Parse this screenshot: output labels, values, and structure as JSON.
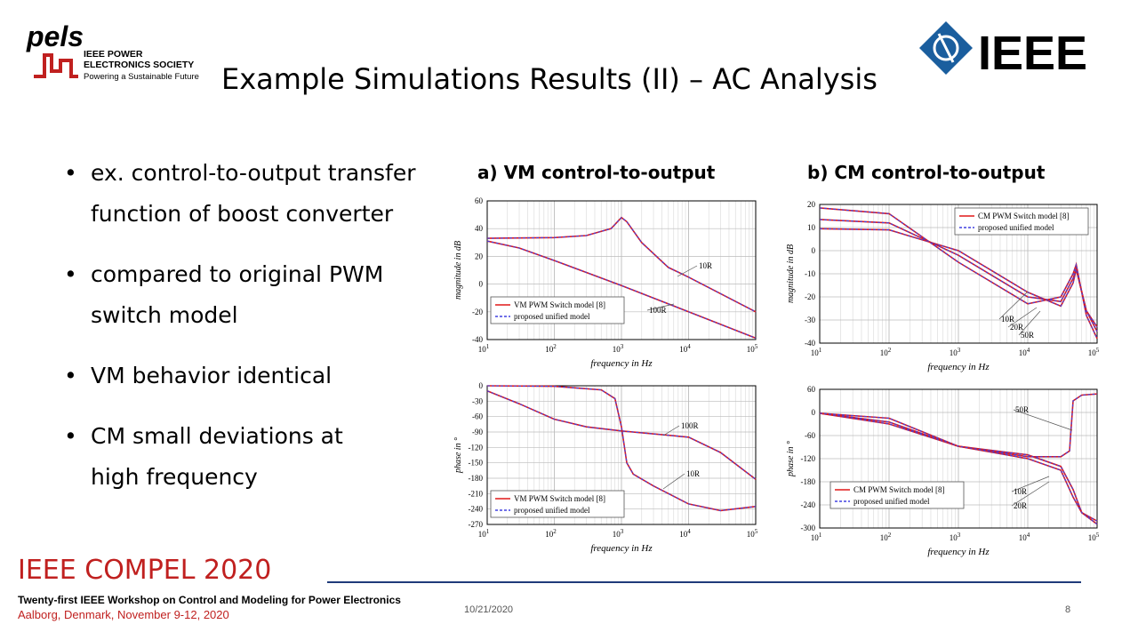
{
  "slide": {
    "title": "Example Simulations Results (II) – AC Analysis",
    "bullets": [
      {
        "line1": "ex. control-to-output transfer",
        "line2": "function of boost converter"
      },
      {
        "line1": "compared to original PWM",
        "line2": "switch model"
      },
      {
        "line1": "VM behavior identical",
        "line2": ""
      },
      {
        "line1": "CM small deviations at",
        "line2": "high frequency"
      }
    ],
    "headings": {
      "a": "a) VM control-to-output",
      "b": "b) CM control-to-output"
    }
  },
  "logos": {
    "pels_mark": "pels",
    "pels_line1": "IEEE POWER",
    "pels_line2": "ELECTRONICS SOCIETY",
    "pels_tagline": "Powering a Sustainable Future",
    "ieee_word": "IEEE"
  },
  "footer": {
    "conference": "IEEE COMPEL 2020",
    "workshop": "Twenty-first IEEE Workshop on Control and Modeling for Power Electronics",
    "location": "Aalborg, Denmark, November 9-12, 2020",
    "date": "10/21/2020",
    "page": "8"
  },
  "colors": {
    "accent_red": "#c0201f",
    "ieee_blue": "#1a5e9e",
    "rule_blue": "#1f3b7a",
    "model_red": "#e01818",
    "unified_blue": "#4040e0"
  },
  "chart_data": [
    {
      "type": "line",
      "x_scale": "log",
      "xlabel": "frequency in Hz",
      "ylabel": "magnitude in dB",
      "xlim": [
        10,
        100000
      ],
      "ylim": [
        -40,
        60
      ],
      "xticks": [
        "10^1",
        "10^2",
        "10^3",
        "10^4",
        "10^5"
      ],
      "yticks": [
        60,
        40,
        20,
        0,
        -20,
        -40
      ],
      "legend": [
        "VM PWM Switch model [8]",
        "proposed unified model"
      ],
      "legend_position": "bottom-left",
      "annotations": [
        "10R",
        "100R"
      ],
      "series": [
        {
          "label": "10R",
          "x": [
            10,
            100,
            300,
            700,
            1000,
            1200,
            2000,
            5000,
            10000,
            100000
          ],
          "y": [
            33,
            33.5,
            35,
            40,
            48,
            45,
            30,
            12,
            5,
            -20
          ]
        },
        {
          "label": "100R",
          "x": [
            10,
            30,
            100,
            1000,
            10000,
            100000
          ],
          "y": [
            31,
            26,
            17,
            -1,
            -20,
            -39
          ]
        }
      ]
    },
    {
      "type": "line",
      "x_scale": "log",
      "xlabel": "frequency in Hz",
      "ylabel": "phase in °",
      "xlim": [
        10,
        100000
      ],
      "ylim": [
        -270,
        0
      ],
      "xticks": [
        "10^1",
        "10^2",
        "10^3",
        "10^4",
        "10^5"
      ],
      "yticks": [
        0,
        -30,
        -60,
        -90,
        -120,
        -150,
        -180,
        -210,
        -240,
        -270
      ],
      "legend": [
        "VM PWM Switch model [8]",
        "proposed unified model"
      ],
      "legend_position": "bottom-left",
      "annotations": [
        "100R",
        "10R"
      ],
      "series": [
        {
          "label": "10R",
          "x": [
            10,
            100,
            500,
            800,
            1000,
            1200,
            1500,
            3000,
            10000,
            30000,
            100000
          ],
          "y": [
            0,
            -1,
            -8,
            -25,
            -80,
            -150,
            -172,
            -195,
            -230,
            -243,
            -235
          ]
        },
        {
          "label": "100R",
          "x": [
            10,
            30,
            100,
            300,
            1000,
            10000,
            30000,
            100000
          ],
          "y": [
            -10,
            -35,
            -65,
            -80,
            -88,
            -100,
            -130,
            -182
          ]
        }
      ]
    },
    {
      "type": "line",
      "x_scale": "log",
      "xlabel": "frequency in Hz",
      "ylabel": "magnitude in dB",
      "xlim": [
        10,
        100000
      ],
      "ylim": [
        -40,
        20
      ],
      "xticks": [
        "10^1",
        "10^2",
        "10^3",
        "10^4",
        "10^5"
      ],
      "yticks": [
        20,
        10,
        0,
        -10,
        -20,
        -30,
        -40
      ],
      "legend": [
        "CM PWM Switch model [8]",
        "proposed unified model"
      ],
      "legend_position": "top-right",
      "annotations": [
        "10R",
        "20R",
        "50R"
      ],
      "series": [
        {
          "label": "10R",
          "x": [
            10,
            100,
            1000,
            10000,
            30000,
            45000,
            50000,
            70000,
            100000
          ],
          "y": [
            9.5,
            9,
            0,
            -18,
            -24,
            -14,
            -8,
            -26,
            -33
          ]
        },
        {
          "label": "20R",
          "x": [
            10,
            100,
            1000,
            10000,
            30000,
            45000,
            50000,
            70000,
            100000
          ],
          "y": [
            13.5,
            12,
            -2,
            -20,
            -22,
            -12,
            -8,
            -26,
            -35
          ]
        },
        {
          "label": "50R",
          "x": [
            10,
            100,
            1000,
            10000,
            30000,
            45000,
            50000,
            70000,
            100000
          ],
          "y": [
            18.5,
            16,
            -5,
            -23,
            -20,
            -10,
            -6,
            -28,
            -38
          ]
        }
      ]
    },
    {
      "type": "line",
      "x_scale": "log",
      "xlabel": "frequency in Hz",
      "ylabel": "phase in °",
      "xlim": [
        10,
        100000
      ],
      "ylim": [
        -300,
        60
      ],
      "xticks": [
        "10^1",
        "10^2",
        "10^3",
        "10^4",
        "10^5"
      ],
      "yticks": [
        60,
        0,
        -60,
        -120,
        -180,
        -240,
        -300
      ],
      "legend": [
        "CM PWM Switch model [8]",
        "proposed unified model"
      ],
      "legend_position": "bottom-left",
      "annotations": [
        "50R",
        "10R",
        "20R"
      ],
      "series": [
        {
          "label": "10R",
          "x": [
            10,
            100,
            1000,
            10000,
            30000,
            45000,
            60000,
            100000
          ],
          "y": [
            -2,
            -30,
            -88,
            -120,
            -150,
            -220,
            -260,
            -282
          ]
        },
        {
          "label": "20R",
          "x": [
            10,
            100,
            1000,
            10000,
            30000,
            45000,
            60000,
            100000
          ],
          "y": [
            -2,
            -25,
            -88,
            -110,
            -140,
            -200,
            -260,
            -290
          ]
        },
        {
          "label": "50R",
          "x": [
            10,
            100,
            1000,
            10000,
            30000,
            40000,
            45000,
            60000,
            100000
          ],
          "y": [
            -2,
            -15,
            -88,
            -115,
            -115,
            -100,
            30,
            45,
            48
          ]
        }
      ]
    }
  ]
}
